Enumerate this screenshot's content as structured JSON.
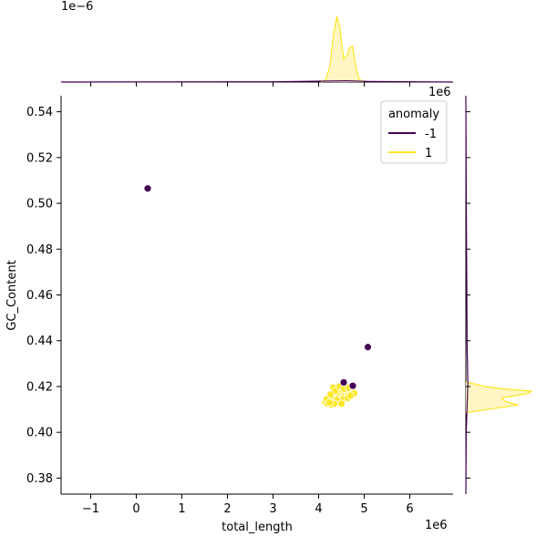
{
  "chart_data": {
    "type": "scatter",
    "subtype": "jointplot",
    "xlabel": "total_length",
    "ylabel": "GC_Content",
    "x_offset_label": "1e6",
    "y_offset_label": "",
    "top_margin_offset_label": "1e−6",
    "right_margin_offset_label": "1e6",
    "xlim": [
      -1.65,
      6.95
    ],
    "ylim": [
      0.373,
      0.547
    ],
    "x_ticks": [
      -1,
      0,
      1,
      2,
      3,
      4,
      5,
      6
    ],
    "y_ticks": [
      0.38,
      0.4,
      0.42,
      0.44,
      0.46,
      0.48,
      0.5,
      0.52,
      0.54
    ],
    "x_tick_labels": [
      "−1",
      "0",
      "1",
      "2",
      "3",
      "4",
      "5",
      "6"
    ],
    "y_tick_labels": [
      "0.38",
      "0.40",
      "0.42",
      "0.44",
      "0.46",
      "0.48",
      "0.50",
      "0.52",
      "0.54"
    ],
    "grid": false,
    "legend": {
      "title": "anomaly",
      "placement": "top-right",
      "entries": [
        {
          "label": "-1",
          "color": "#440154"
        },
        {
          "label": "1",
          "color": "#fde725"
        }
      ]
    },
    "series": [
      {
        "name": "-1",
        "color": "#440154",
        "points": [
          [
            0.25,
            0.5065
          ],
          [
            5.08,
            0.4372
          ],
          [
            4.55,
            0.4218
          ],
          [
            4.75,
            0.4203
          ]
        ]
      },
      {
        "name": "1",
        "color": "#fde725",
        "points": [
          [
            4.15,
            0.413
          ],
          [
            4.2,
            0.4125
          ],
          [
            4.22,
            0.414
          ],
          [
            4.25,
            0.415
          ],
          [
            4.28,
            0.412
          ],
          [
            4.3,
            0.4135
          ],
          [
            4.32,
            0.416
          ],
          [
            4.35,
            0.4145
          ],
          [
            4.38,
            0.4125
          ],
          [
            4.4,
            0.4175
          ],
          [
            4.42,
            0.419
          ],
          [
            4.45,
            0.4155
          ],
          [
            4.48,
            0.414
          ],
          [
            4.5,
            0.417
          ],
          [
            4.52,
            0.4185
          ],
          [
            4.55,
            0.416
          ],
          [
            4.58,
            0.4175
          ],
          [
            4.6,
            0.4195
          ],
          [
            4.62,
            0.418
          ],
          [
            4.65,
            0.4165
          ],
          [
            4.68,
            0.418
          ],
          [
            4.7,
            0.42
          ],
          [
            4.72,
            0.4175
          ],
          [
            4.75,
            0.419
          ],
          [
            4.78,
            0.417
          ],
          [
            4.32,
            0.4195
          ],
          [
            4.36,
            0.418
          ],
          [
            4.44,
            0.413
          ],
          [
            4.18,
            0.4145
          ],
          [
            4.26,
            0.4165
          ],
          [
            4.46,
            0.42
          ],
          [
            4.54,
            0.4145
          ],
          [
            4.64,
            0.415
          ],
          [
            4.4,
            0.414
          ],
          [
            4.34,
            0.4125
          ],
          [
            4.56,
            0.419
          ],
          [
            4.66,
            0.4195
          ],
          [
            4.24,
            0.413
          ],
          [
            4.5,
            0.4125
          ],
          [
            4.7,
            0.416
          ]
        ]
      }
    ],
    "marginal_x": {
      "type": "kde",
      "series": [
        {
          "name": "1",
          "color": "#fde725",
          "fill": "#fff6c4",
          "x": [
            4.05,
            4.15,
            4.25,
            4.32,
            4.4,
            4.47,
            4.55,
            4.62,
            4.68,
            4.74,
            4.8,
            4.88,
            4.98
          ],
          "density": [
            0.0,
            0.02,
            0.25,
            0.7,
            1.0,
            0.8,
            0.35,
            0.4,
            0.52,
            0.55,
            0.3,
            0.05,
            0.0
          ]
        },
        {
          "name": "-1",
          "color": "#440154",
          "x": [
            -1.65,
            0.25,
            3.0,
            4.6,
            5.08,
            6.95
          ],
          "density": [
            0.0,
            0.003,
            0.004,
            0.02,
            0.01,
            0.0
          ]
        }
      ]
    },
    "marginal_y": {
      "type": "kde",
      "series": [
        {
          "name": "1",
          "color": "#fde725",
          "fill": "#fff6c4",
          "y": [
            0.4085,
            0.4105,
            0.412,
            0.4135,
            0.415,
            0.416,
            0.417,
            0.418,
            0.419,
            0.42,
            0.422
          ],
          "density": [
            0.0,
            0.45,
            0.8,
            0.6,
            0.55,
            0.75,
            0.95,
            1.0,
            0.55,
            0.3,
            0.0
          ]
        },
        {
          "name": "-1",
          "color": "#440154",
          "y": [
            0.373,
            0.4,
            0.4215,
            0.4372,
            0.5065,
            0.547
          ],
          "density": [
            0.0,
            0.005,
            0.03,
            0.02,
            0.005,
            0.0
          ]
        }
      ]
    }
  }
}
